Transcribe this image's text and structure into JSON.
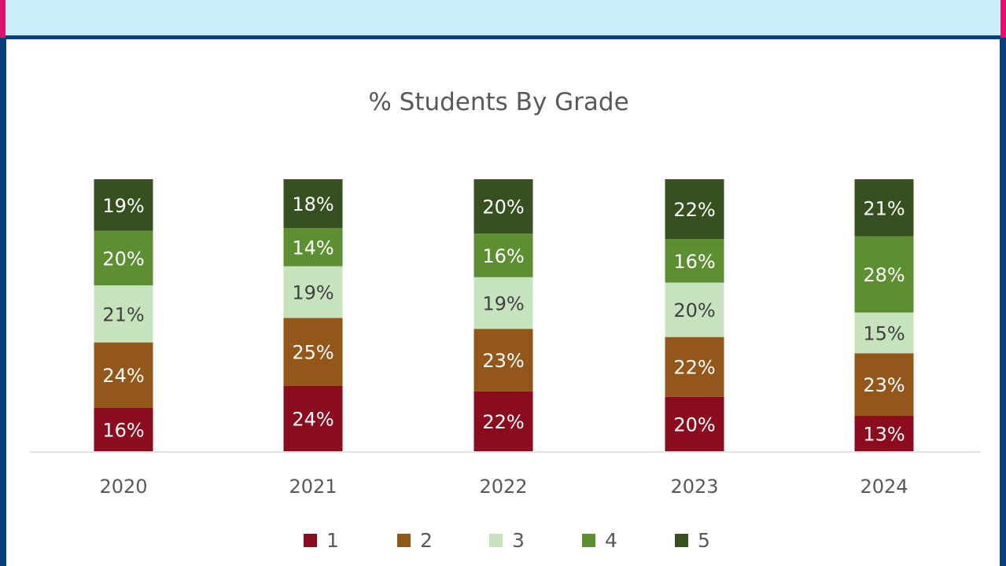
{
  "chart_data": {
    "type": "bar",
    "stacked": true,
    "title": "% Students By Grade",
    "categories": [
      "2020",
      "2021",
      "2022",
      "2023",
      "2024"
    ],
    "series": [
      {
        "name": "1",
        "color": "#8b0b1f",
        "values": [
          16,
          24,
          22,
          20,
          13
        ]
      },
      {
        "name": "2",
        "color": "#93571a",
        "values": [
          24,
          25,
          23,
          22,
          23
        ]
      },
      {
        "name": "3",
        "color": "#c7e3bd",
        "values": [
          21,
          19,
          19,
          20,
          15
        ]
      },
      {
        "name": "4",
        "color": "#5d8e32",
        "values": [
          20,
          14,
          16,
          16,
          28
        ]
      },
      {
        "name": "5",
        "color": "#36501f",
        "values": [
          19,
          18,
          20,
          22,
          21
        ]
      }
    ],
    "value_suffix": "%",
    "grid": false,
    "legend_position": "bottom"
  }
}
